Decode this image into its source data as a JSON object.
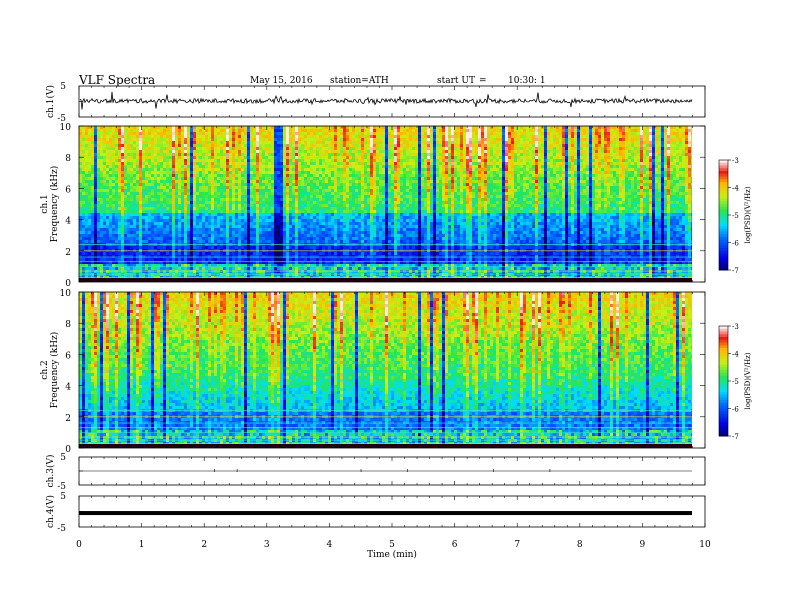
{
  "header": {
    "title": "VLF  Spectra",
    "date": "May 15, 2016",
    "station": "station=ATH",
    "start_label": "start  UT",
    "equals": "=",
    "start_value": "10:30: 1"
  },
  "chart_data": [
    {
      "type": "line",
      "panel": "ch1-waveform",
      "ylabel": "ch.1(V)",
      "ylim": [
        -5,
        5
      ],
      "yticks": [
        "5",
        "-5"
      ],
      "x_range_min": [
        0,
        9.8
      ],
      "series": [
        {
          "values": "noisy signal around +0.2 V with spikes"
        }
      ],
      "color": "#000000"
    },
    {
      "type": "heatmap",
      "panel": "ch1-spectrogram",
      "ylabel_lines": [
        "ch.1",
        "Frequency  (kHz)"
      ],
      "ylim": [
        0,
        10
      ],
      "yticks": [
        "0",
        "2",
        "4",
        "6",
        "8",
        "10"
      ],
      "colorbar": {
        "label": "log(PSD)(V²/Hz)",
        "range": [
          -7,
          -3
        ],
        "ticks": [
          "-7",
          "-6",
          "-5",
          "-4",
          "-3"
        ]
      }
    },
    {
      "type": "heatmap",
      "panel": "ch2-spectrogram",
      "ylabel_lines": [
        "ch.2",
        "Frequency  (kHz)"
      ],
      "ylim": [
        0,
        10
      ],
      "yticks": [
        "0",
        "2",
        "4",
        "6",
        "8",
        "10"
      ],
      "colorbar": {
        "label": "log(PSD)(V²/Hz)",
        "range": [
          -7,
          -3
        ],
        "ticks": [
          "-7",
          "-6",
          "-5",
          "-4",
          "-3"
        ]
      }
    },
    {
      "type": "line",
      "panel": "ch3-waveform",
      "ylabel": "ch.3(V)",
      "ylim": [
        -5,
        5
      ],
      "yticks": [
        "5",
        "-5"
      ],
      "series": [
        {
          "values": "flat near 0 V with sparse spikes"
        }
      ]
    },
    {
      "type": "line",
      "panel": "ch4-waveform",
      "ylabel": "ch.4(V)",
      "ylim": [
        -5,
        5
      ],
      "yticks": [
        "5",
        "-5"
      ],
      "series": [
        {
          "values": "thick band near -0.5 V"
        }
      ]
    }
  ],
  "xaxis": {
    "label": "Time  (min)",
    "range": [
      0,
      10
    ],
    "ticks": [
      "0",
      "1",
      "2",
      "3",
      "4",
      "5",
      "6",
      "7",
      "8",
      "9",
      "10"
    ]
  },
  "colors": {
    "ch1_low_band": "#1a30c8",
    "ch2_low_band": "#2a6cf0",
    "bright": "#f0e020",
    "background_green": "#40d060"
  }
}
